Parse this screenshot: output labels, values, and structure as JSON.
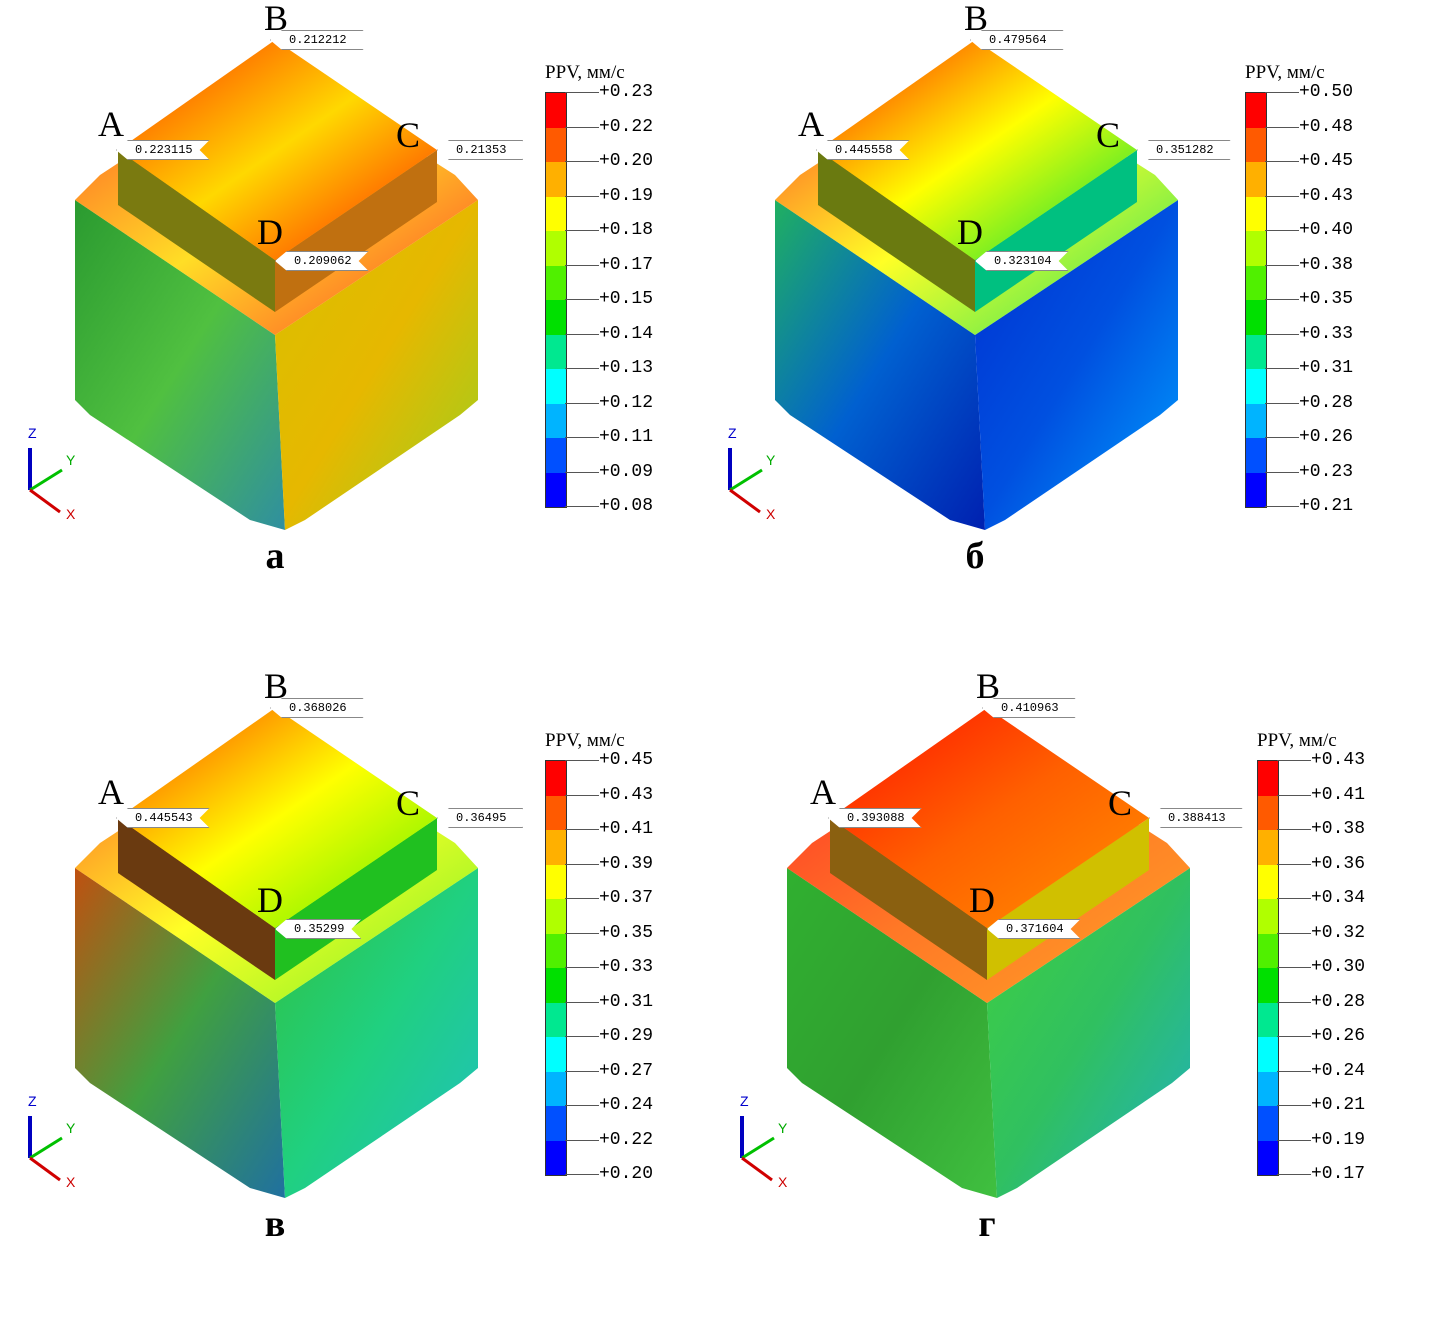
{
  "legend_title": "PPV, мм/с",
  "colors": [
    "#ff0000",
    "#ff5a00",
    "#ffb000",
    "#ffff00",
    "#b0ff00",
    "#50f000",
    "#00e000",
    "#00e890",
    "#00ffff",
    "#00b4ff",
    "#0050ff",
    "#0000ff"
  ],
  "axes": {
    "z": "Z",
    "y": "Y",
    "x": "X"
  },
  "panels": [
    {
      "letter": "а",
      "points": {
        "A": {
          "name": "A",
          "value": "0.223115"
        },
        "B": {
          "name": "B",
          "value": "0.212212"
        },
        "C": {
          "name": "C",
          "value": "0.21353"
        },
        "D": {
          "name": "D",
          "value": "0.209062"
        }
      },
      "legend": [
        "+0.23",
        "+0.22",
        "+0.20",
        "+0.19",
        "+0.18",
        "+0.17",
        "+0.15",
        "+0.14",
        "+0.13",
        "+0.12",
        "+0.11",
        "+0.09",
        "+0.08"
      ],
      "scheme": {
        "top": [
          "#ff3000",
          "#ffd800",
          "#ff2000"
        ],
        "left": [
          "#2a9a30",
          "#50c040",
          "#2f8fa0"
        ],
        "right": [
          "#d8c000",
          "#e6b800",
          "#9ad020"
        ],
        "block_left": "#7a7a10",
        "block_right": "#c07010"
      }
    },
    {
      "letter": "б",
      "points": {
        "A": {
          "name": "A",
          "value": "0.445558"
        },
        "B": {
          "name": "B",
          "value": "0.479564"
        },
        "C": {
          "name": "C",
          "value": "0.351282"
        },
        "D": {
          "name": "D",
          "value": "0.323104"
        }
      },
      "legend": [
        "+0.50",
        "+0.48",
        "+0.45",
        "+0.43",
        "+0.40",
        "+0.38",
        "+0.35",
        "+0.33",
        "+0.31",
        "+0.28",
        "+0.26",
        "+0.23",
        "+0.21"
      ],
      "scheme": {
        "top": [
          "#ff2000",
          "#ffff00",
          "#00e040"
        ],
        "left": [
          "#20b060",
          "#0060d0",
          "#0020b0"
        ],
        "right": [
          "#0030d0",
          "#0050e0",
          "#00a0ff"
        ],
        "block_left": "#6a7a10",
        "block_right": "#00c080"
      }
    },
    {
      "letter": "в",
      "points": {
        "A": {
          "name": "A",
          "value": "0.445543"
        },
        "B": {
          "name": "B",
          "value": "0.368026"
        },
        "C": {
          "name": "C",
          "value": "0.36495"
        },
        "D": {
          "name": "D",
          "value": "0.35299"
        }
      },
      "legend": [
        "+0.45",
        "+0.43",
        "+0.41",
        "+0.39",
        "+0.37",
        "+0.35",
        "+0.33",
        "+0.31",
        "+0.29",
        "+0.27",
        "+0.24",
        "+0.22",
        "+0.20"
      ],
      "scheme": {
        "top": [
          "#ff4000",
          "#ffff00",
          "#60f000"
        ],
        "left": [
          "#c05010",
          "#40a040",
          "#2070a0"
        ],
        "right": [
          "#30c040",
          "#20d080",
          "#20c0c0"
        ],
        "block_left": "#6a3a10",
        "block_right": "#20c020"
      }
    },
    {
      "letter": "г",
      "points": {
        "A": {
          "name": "A",
          "value": "0.393088"
        },
        "B": {
          "name": "B",
          "value": "0.410963"
        },
        "C": {
          "name": "C",
          "value": "0.388413"
        },
        "D": {
          "name": "D",
          "value": "0.371604"
        }
      },
      "legend": [
        "+0.43",
        "+0.41",
        "+0.38",
        "+0.36",
        "+0.34",
        "+0.32",
        "+0.30",
        "+0.28",
        "+0.26",
        "+0.24",
        "+0.21",
        "+0.19",
        "+0.17"
      ],
      "scheme": {
        "top": [
          "#ff1000",
          "#ff6000",
          "#ff9000"
        ],
        "left": [
          "#30b030",
          "#30a030",
          "#40c040"
        ],
        "right": [
          "#40d040",
          "#30c060",
          "#20b0c0"
        ],
        "block_left": "#8a6010",
        "block_right": "#d0c000"
      }
    }
  ]
}
